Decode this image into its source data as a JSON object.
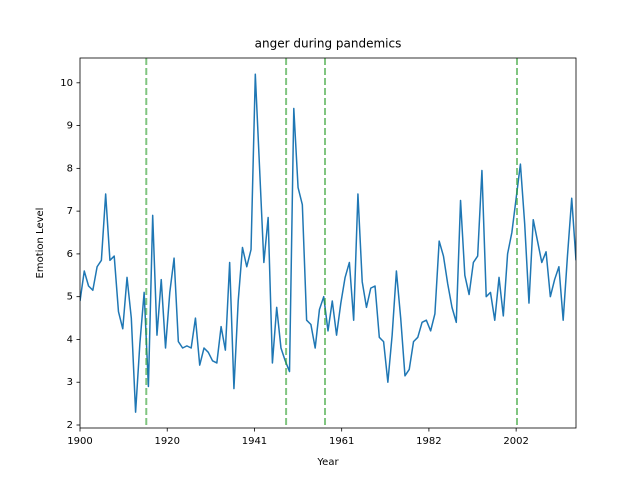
{
  "chart_data": {
    "type": "line",
    "title": "anger during pandemics",
    "x_label": "Year",
    "y_label": "Emotion Level",
    "x": [
      1900,
      1901,
      1902,
      1903,
      1904,
      1905,
      1906,
      1907,
      1908,
      1909,
      1910,
      1911,
      1912,
      1913,
      1914,
      1915,
      1916,
      1917,
      1918,
      1919,
      1920,
      1921,
      1922,
      1923,
      1924,
      1925,
      1926,
      1927,
      1928,
      1929,
      1930,
      1931,
      1932,
      1933,
      1934,
      1935,
      1936,
      1937,
      1938,
      1939,
      1940,
      1941,
      1942,
      1943,
      1944,
      1945,
      1946,
      1947,
      1948,
      1949,
      1950,
      1951,
      1952,
      1953,
      1954,
      1955,
      1956,
      1957,
      1958,
      1959,
      1960,
      1961,
      1962,
      1963,
      1964,
      1965,
      1966,
      1967,
      1968,
      1969,
      1970,
      1971,
      1972,
      1973,
      1974,
      1975,
      1976,
      1977,
      1978,
      1979,
      1980,
      1981,
      1982,
      1983,
      1984,
      1985,
      1986,
      1987,
      1988,
      1989,
      1990,
      1991,
      1992,
      1993,
      1994,
      1995,
      1996,
      1997,
      1998,
      1999,
      2000,
      2001,
      2002,
      2003,
      2004,
      2005,
      2006,
      2007,
      2008,
      2009,
      2010,
      2011,
      2012,
      2013,
      2014,
      2015,
      2016
    ],
    "series": [
      {
        "color": "#1f77b4",
        "values": [
          4.9,
          5.6,
          5.25,
          5.15,
          5.7,
          5.85,
          7.4,
          5.85,
          5.95,
          4.65,
          4.25,
          5.45,
          4.5,
          2.3,
          3.9,
          5.1,
          2.9,
          6.9,
          4.1,
          5.4,
          3.8,
          5.1,
          5.9,
          3.95,
          3.8,
          3.85,
          3.8,
          4.5,
          3.4,
          3.8,
          3.7,
          3.5,
          3.45,
          4.3,
          3.75,
          5.8,
          2.85,
          4.9,
          6.15,
          5.7,
          6.1,
          10.2,
          8.0,
          5.8,
          6.85,
          3.45,
          4.75,
          3.8,
          3.5,
          3.25,
          9.4,
          7.55,
          7.15,
          4.45,
          4.35,
          3.8,
          4.7,
          5.0,
          4.2,
          4.9,
          4.1,
          4.85,
          5.45,
          5.8,
          4.45,
          7.4,
          5.35,
          4.75,
          5.2,
          5.25,
          4.05,
          3.95,
          3.0,
          4.1,
          5.6,
          4.5,
          3.15,
          3.3,
          3.95,
          4.05,
          4.4,
          4.45,
          4.2,
          4.6,
          6.3,
          5.95,
          5.3,
          4.75,
          4.4,
          7.25,
          5.5,
          5.05,
          5.8,
          5.95,
          7.95,
          5.0,
          5.1,
          4.45,
          5.45,
          4.55,
          6.0,
          6.5,
          7.3,
          8.1,
          6.7,
          4.85,
          6.8,
          6.3,
          5.8,
          6.05,
          5.0,
          5.4,
          5.7,
          4.45,
          5.95,
          7.3,
          5.85
        ]
      }
    ],
    "vlines": [
      1915.5,
      1948.2,
      1957.3,
      2002.2
    ],
    "vline_color": "#2ca02c",
    "xlim": [
      1900,
      2016
    ],
    "ylim": [
      1.93,
      10.58
    ],
    "xticks": [
      1900,
      {
        "value": 1920.4,
        "label": "1920"
      },
      {
        "value": 1940.8,
        "label": "1941"
      },
      {
        "value": 1961.2,
        "label": "1961"
      },
      {
        "value": 1981.6,
        "label": "1982"
      },
      2002
    ],
    "yticks": [
      2,
      3,
      4,
      5,
      6,
      7,
      8,
      9,
      10
    ]
  }
}
